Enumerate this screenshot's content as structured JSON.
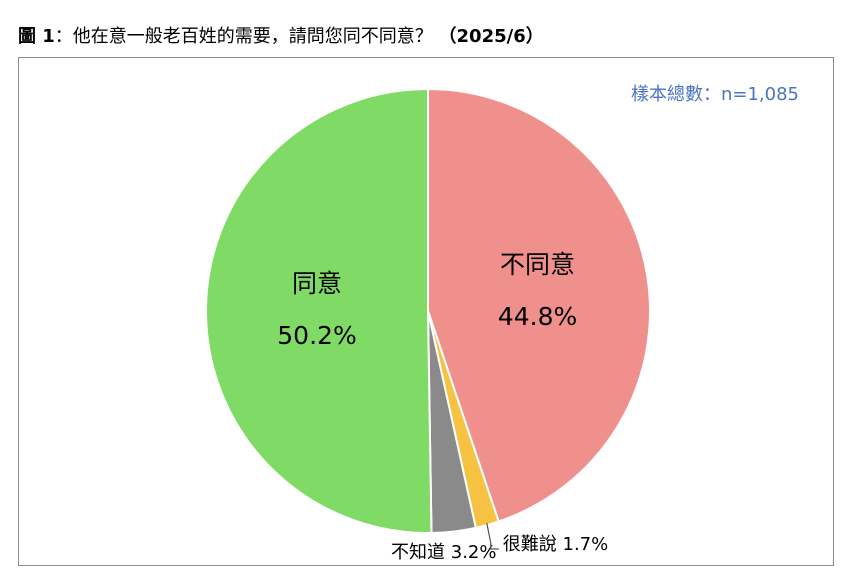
{
  "title": {
    "figure": "圖 1",
    "separator": "：",
    "question": "他在意一般老百姓的需要，請問您同不同意？",
    "date": "（2025/6）"
  },
  "sample_label": "樣本總數：n=1,085",
  "chart_data": {
    "type": "pie",
    "slices": [
      {
        "label": "不同意",
        "value": 44.8,
        "display": "44.8%",
        "color": "#f0908c"
      },
      {
        "label": "很難說",
        "value": 1.7,
        "display": "1.7%",
        "color": "#f5c242"
      },
      {
        "label": "不知道",
        "value": 3.2,
        "display": "3.2%",
        "color": "#8a8a8a"
      },
      {
        "label": "同意",
        "value": 50.2,
        "display": "50.2%",
        "color": "#7fdb66"
      }
    ],
    "start": "top, clockwise",
    "legend": "none"
  }
}
